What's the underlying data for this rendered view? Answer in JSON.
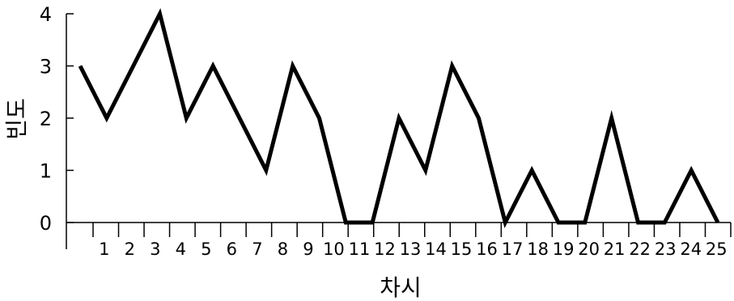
{
  "chart_data": {
    "type": "line",
    "title": "",
    "xlabel": "차시",
    "ylabel": "빈도",
    "categories": [
      "1",
      "2",
      "3",
      "4",
      "5",
      "6",
      "7",
      "8",
      "9",
      "10",
      "11",
      "12",
      "13",
      "14",
      "15",
      "16",
      "17",
      "18",
      "19",
      "20",
      "21",
      "22",
      "23",
      "24",
      "25"
    ],
    "series": [
      {
        "values": [
          3,
          2,
          3,
          4,
          2,
          3,
          2,
          1,
          3,
          2,
          0,
          0,
          2,
          1,
          3,
          2,
          0,
          1,
          0,
          0,
          2,
          0,
          0,
          1,
          0
        ]
      }
    ],
    "ylim": [
      0,
      4
    ],
    "yticks": [
      0,
      1,
      2,
      3,
      4
    ],
    "grid": false,
    "line_color": "#000000"
  }
}
